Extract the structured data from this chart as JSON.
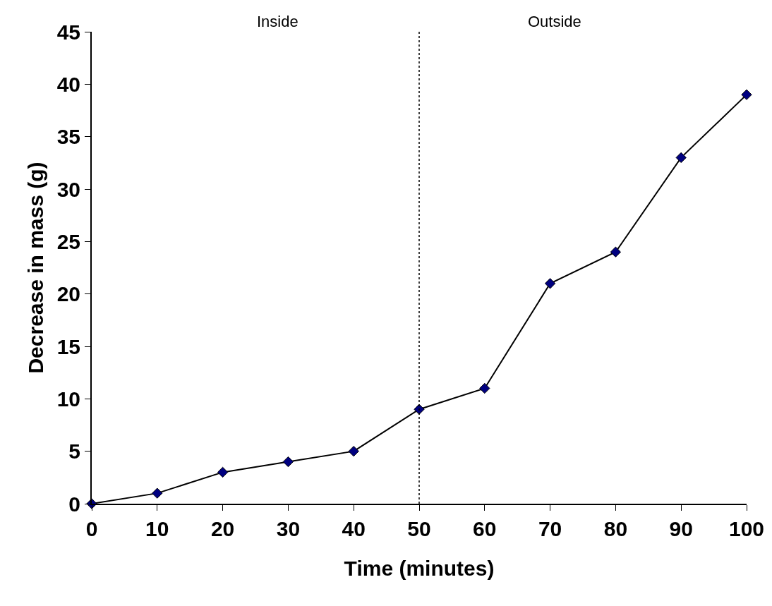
{
  "chart_data": {
    "type": "line",
    "xlabel": "Time (minutes)",
    "ylabel": "Decrease in mass (g)",
    "x": [
      0,
      10,
      20,
      30,
      40,
      50,
      60,
      70,
      80,
      90,
      100
    ],
    "series": [
      {
        "color": "#000080",
        "values": [
          0,
          1,
          3,
          4,
          5,
          9,
          11,
          21,
          24,
          33,
          39
        ]
      }
    ],
    "xlim": [
      0,
      100
    ],
    "xticks": [
      0,
      10,
      20,
      30,
      40,
      50,
      60,
      70,
      80,
      90,
      100
    ],
    "ylim": [
      0,
      45
    ],
    "yticks": [
      0,
      5,
      10,
      15,
      20,
      25,
      30,
      35,
      40,
      45
    ],
    "ref_lines": [
      {
        "axis": "x",
        "value": 50,
        "color": "#000000",
        "line_style": "dotted"
      }
    ],
    "annotations": [
      "Inside",
      "Outside"
    ],
    "legend": false,
    "marker": "diamond",
    "line_style": "solid"
  }
}
